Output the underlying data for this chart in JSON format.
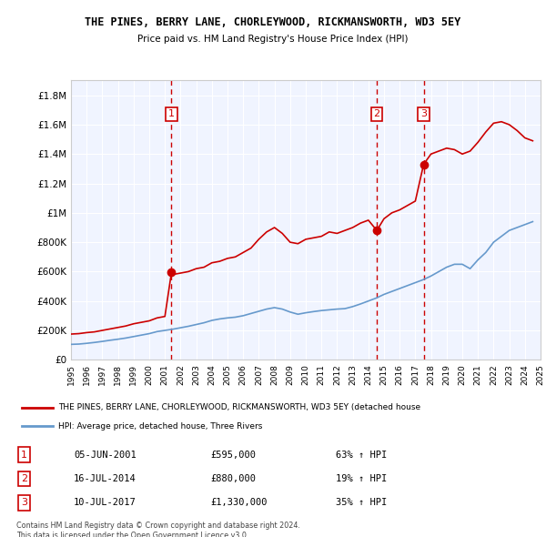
{
  "title": "THE PINES, BERRY LANE, CHORLEYWOOD, RICKMANSWORTH, WD3 5EY",
  "subtitle": "Price paid vs. HM Land Registry's House Price Index (HPI)",
  "background_color": "#ffffff",
  "plot_background": "#f0f4ff",
  "grid_color": "#ffffff",
  "ylim": [
    0,
    1900000
  ],
  "yticks": [
    0,
    200000,
    400000,
    600000,
    800000,
    1000000,
    1200000,
    1400000,
    1600000,
    1800000
  ],
  "ytick_labels": [
    "£0",
    "£200K",
    "£400K",
    "£600K",
    "£800K",
    "£1M",
    "£1.2M",
    "£1.4M",
    "£1.6M",
    "£1.8M"
  ],
  "sale_dates": [
    2001.42,
    2014.54,
    2017.53
  ],
  "sale_prices": [
    595000,
    880000,
    1330000
  ],
  "sale_labels": [
    "1",
    "2",
    "3"
  ],
  "sale_color": "#cc0000",
  "hpi_color": "#6699cc",
  "vline_color": "#cc0000",
  "legend_line1": "THE PINES, BERRY LANE, CHORLEYWOOD, RICKMANSWORTH, WD3 5EY (detached house",
  "legend_line2": "HPI: Average price, detached house, Three Rivers",
  "table_rows": [
    [
      "1",
      "05-JUN-2001",
      "£595,000",
      "63% ↑ HPI"
    ],
    [
      "2",
      "16-JUL-2014",
      "£880,000",
      "19% ↑ HPI"
    ],
    [
      "3",
      "10-JUL-2017",
      "£1,330,000",
      "35% ↑ HPI"
    ]
  ],
  "footnote": "Contains HM Land Registry data © Crown copyright and database right 2024.\nThis data is licensed under the Open Government Licence v3.0.",
  "red_line_x": [
    1995.0,
    1995.5,
    1996.0,
    1996.5,
    1997.0,
    1997.5,
    1998.0,
    1998.5,
    1999.0,
    1999.5,
    2000.0,
    2000.5,
    2001.0,
    2001.42,
    2001.5,
    2002.0,
    2002.5,
    2003.0,
    2003.5,
    2004.0,
    2004.5,
    2005.0,
    2005.5,
    2006.0,
    2006.5,
    2007.0,
    2007.5,
    2008.0,
    2008.5,
    2009.0,
    2009.5,
    2010.0,
    2010.5,
    2011.0,
    2011.5,
    2012.0,
    2012.5,
    2013.0,
    2013.5,
    2014.0,
    2014.54,
    2015.0,
    2015.5,
    2016.0,
    2016.5,
    2017.0,
    2017.53,
    2018.0,
    2018.5,
    2019.0,
    2019.5,
    2020.0,
    2020.5,
    2021.0,
    2021.5,
    2022.0,
    2022.5,
    2023.0,
    2023.5,
    2024.0,
    2024.5
  ],
  "red_line_y": [
    175000,
    178000,
    185000,
    190000,
    200000,
    210000,
    220000,
    230000,
    245000,
    255000,
    265000,
    285000,
    295000,
    595000,
    580000,
    590000,
    600000,
    620000,
    630000,
    660000,
    670000,
    690000,
    700000,
    730000,
    760000,
    820000,
    870000,
    900000,
    860000,
    800000,
    790000,
    820000,
    830000,
    840000,
    870000,
    860000,
    880000,
    900000,
    930000,
    950000,
    880000,
    960000,
    1000000,
    1020000,
    1050000,
    1080000,
    1330000,
    1400000,
    1420000,
    1440000,
    1430000,
    1400000,
    1420000,
    1480000,
    1550000,
    1610000,
    1620000,
    1600000,
    1560000,
    1510000,
    1490000
  ],
  "blue_line_x": [
    1995.0,
    1995.5,
    1996.0,
    1996.5,
    1997.0,
    1997.5,
    1998.0,
    1998.5,
    1999.0,
    1999.5,
    2000.0,
    2000.5,
    2001.0,
    2001.5,
    2002.0,
    2002.5,
    2003.0,
    2003.5,
    2004.0,
    2004.5,
    2005.0,
    2005.5,
    2006.0,
    2006.5,
    2007.0,
    2007.5,
    2008.0,
    2008.5,
    2009.0,
    2009.5,
    2010.0,
    2010.5,
    2011.0,
    2011.5,
    2012.0,
    2012.5,
    2013.0,
    2013.5,
    2014.0,
    2014.5,
    2015.0,
    2015.5,
    2016.0,
    2016.5,
    2017.0,
    2017.5,
    2018.0,
    2018.5,
    2019.0,
    2019.5,
    2020.0,
    2020.5,
    2021.0,
    2021.5,
    2022.0,
    2022.5,
    2023.0,
    2023.5,
    2024.0,
    2024.5
  ],
  "blue_line_y": [
    105000,
    107000,
    112000,
    118000,
    125000,
    133000,
    140000,
    148000,
    158000,
    168000,
    178000,
    192000,
    200000,
    208000,
    218000,
    228000,
    240000,
    252000,
    268000,
    278000,
    285000,
    290000,
    300000,
    315000,
    330000,
    345000,
    355000,
    345000,
    325000,
    310000,
    320000,
    328000,
    335000,
    340000,
    345000,
    348000,
    362000,
    380000,
    400000,
    420000,
    445000,
    465000,
    485000,
    505000,
    525000,
    545000,
    570000,
    600000,
    630000,
    650000,
    650000,
    620000,
    680000,
    730000,
    800000,
    840000,
    880000,
    900000,
    920000,
    940000
  ],
  "xticks": [
    1995,
    1996,
    1997,
    1998,
    1999,
    2000,
    2001,
    2002,
    2003,
    2004,
    2005,
    2006,
    2007,
    2008,
    2009,
    2010,
    2011,
    2012,
    2013,
    2014,
    2015,
    2016,
    2017,
    2018,
    2019,
    2020,
    2021,
    2022,
    2023,
    2024,
    2025
  ]
}
